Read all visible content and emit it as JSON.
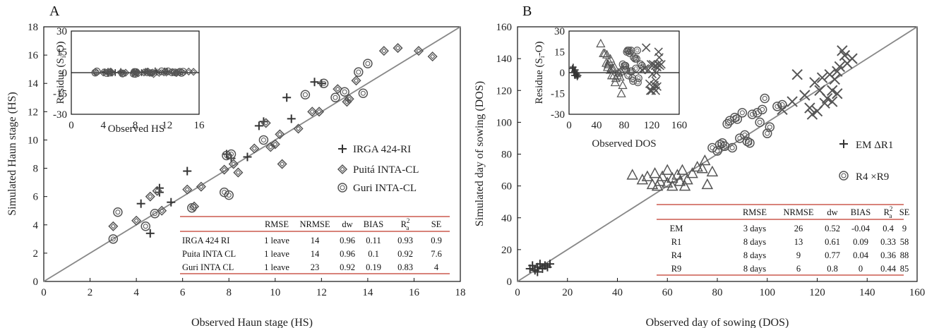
{
  "chart_data": [
    {
      "panel": "A",
      "type": "scatter",
      "xlabel": "Observed Haun stage (HS)",
      "ylabel": "Simulated Haun stage (HS)",
      "xlim": [
        0,
        18
      ],
      "ylim": [
        0,
        18
      ],
      "xticks": [
        "0",
        "2",
        "4",
        "6",
        "8",
        "10",
        "12",
        "14",
        "16",
        "18"
      ],
      "yticks": [
        "0",
        "2",
        "4",
        "6",
        "8",
        "10",
        "12",
        "14",
        "16",
        "18"
      ],
      "one_to_one_line": true,
      "legend_position": "right",
      "series": [
        {
          "name": "IRGA 424-RI",
          "marker": "plus",
          "points": [
            [
              4.2,
              5.5
            ],
            [
              4.6,
              3.4
            ],
            [
              5.0,
              6.6
            ],
            [
              5.0,
              6.3
            ],
            [
              5.5,
              5.6
            ],
            [
              6.2,
              7.8
            ],
            [
              7.9,
              9.0
            ],
            [
              8.8,
              8.8
            ],
            [
              9.3,
              11.0
            ],
            [
              10.5,
              13.0
            ],
            [
              10.7,
              11.5
            ],
            [
              12.0,
              14.0
            ],
            [
              11.7,
              14.1
            ],
            [
              9.5,
              11.3
            ],
            [
              8.1,
              8.7
            ]
          ]
        },
        {
          "name": "Puitá INTA-CL",
          "marker": "diamond",
          "points": [
            [
              3.0,
              3.9
            ],
            [
              4.0,
              4.3
            ],
            [
              4.6,
              6.0
            ],
            [
              4.9,
              6.4
            ],
            [
              5.1,
              5.0
            ],
            [
              6.2,
              6.5
            ],
            [
              6.5,
              5.3
            ],
            [
              6.8,
              6.7
            ],
            [
              7.8,
              7.9
            ],
            [
              8.2,
              8.3
            ],
            [
              8.4,
              7.7
            ],
            [
              9.1,
              9.4
            ],
            [
              9.6,
              11.2
            ],
            [
              9.8,
              9.5
            ],
            [
              10.0,
              9.7
            ],
            [
              10.2,
              10.4
            ],
            [
              10.3,
              8.3
            ],
            [
              11.0,
              10.8
            ],
            [
              11.6,
              12.0
            ],
            [
              11.9,
              12.0
            ],
            [
              12.7,
              13.6
            ],
            [
              13.2,
              12.9
            ],
            [
              13.5,
              14.2
            ],
            [
              14.7,
              16.3
            ],
            [
              15.3,
              16.5
            ],
            [
              16.2,
              16.3
            ],
            [
              16.8,
              15.9
            ],
            [
              13.1,
              12.7
            ]
          ]
        },
        {
          "name": "Guri INTA-CL",
          "marker": "circle",
          "points": [
            [
              3.0,
              3.0
            ],
            [
              3.2,
              4.9
            ],
            [
              4.4,
              3.9
            ],
            [
              4.8,
              4.8
            ],
            [
              6.4,
              5.2
            ],
            [
              7.8,
              6.3
            ],
            [
              8.0,
              6.1
            ],
            [
              7.9,
              8.9
            ],
            [
              8.1,
              9.0
            ],
            [
              9.5,
              10.0
            ],
            [
              11.3,
              13.2
            ],
            [
              12.1,
              14.0
            ],
            [
              12.6,
              13.0
            ],
            [
              13.0,
              13.4
            ],
            [
              13.6,
              14.8
            ],
            [
              14.0,
              15.4
            ],
            [
              13.8,
              13.3
            ]
          ]
        }
      ],
      "inset": {
        "xlabel": "Observed HS",
        "ylabel": "Residue (Si-O)",
        "ylabel_main": "Residue (S",
        "ylabel_sub": "i",
        "ylabel_tail": "-O)",
        "xlim": [
          0,
          16
        ],
        "ylim": [
          -30,
          30
        ],
        "xticks": [
          "0",
          "4",
          "8",
          "12",
          "16"
        ],
        "yticks": [
          "-30",
          "-15",
          "0",
          "15",
          "30"
        ]
      },
      "table": {
        "headers": [
          "",
          "RMSE",
          "NRMSE",
          "dw",
          "BIAS",
          "R",
          "SE"
        ],
        "r2_sup": "2",
        "r2_sub": "a",
        "rows": [
          [
            "IRGA 424 RI",
            "1 leave",
            "14",
            "0.96",
            "0.11",
            "0.93",
            "0.9"
          ],
          [
            "Puita INTA CL",
            "1 leave",
            "14",
            "0.96",
            "0.1",
            "0.92",
            "7.6"
          ],
          [
            "Guri INTA CL",
            "1 leave",
            "23",
            "0.92",
            "0.19",
            "0.83",
            "4"
          ]
        ]
      }
    },
    {
      "panel": "B",
      "type": "scatter",
      "xlabel": "Observed day of sowing (DOS)",
      "ylabel": "Simulated day of sowing (DOS)",
      "xlim": [
        0,
        160
      ],
      "ylim": [
        0,
        160
      ],
      "xticks": [
        "0",
        "20",
        "40",
        "60",
        "80",
        "100",
        "120",
        "140",
        "160"
      ],
      "yticks": [
        "0",
        "20",
        "40",
        "60",
        "80",
        "100",
        "120",
        "140",
        "160"
      ],
      "one_to_one_line": true,
      "legend_position": "right",
      "legend_text": [
        "EM  ΔR1",
        "R4  ×R9"
      ],
      "series": [
        {
          "name": "EM",
          "marker": "plus",
          "points": [
            [
              5,
              8
            ],
            [
              6,
              10
            ],
            [
              7,
              7
            ],
            [
              8,
              9
            ],
            [
              9,
              11
            ],
            [
              10,
              8
            ],
            [
              11,
              10
            ],
            [
              12,
              9
            ],
            [
              13,
              11
            ],
            [
              8,
              6
            ]
          ]
        },
        {
          "name": "R1",
          "marker": "triangle",
          "points": [
            [
              46,
              67
            ],
            [
              50,
              64
            ],
            [
              52,
              66
            ],
            [
              54,
              61
            ],
            [
              55,
              68
            ],
            [
              57,
              63
            ],
            [
              58,
              66
            ],
            [
              60,
              62
            ],
            [
              60,
              70
            ],
            [
              62,
              65
            ],
            [
              64,
              67
            ],
            [
              65,
              63
            ],
            [
              66,
              70
            ],
            [
              68,
              64
            ],
            [
              70,
              68
            ],
            [
              72,
              72
            ],
            [
              74,
              71
            ],
            [
              75,
              76
            ],
            [
              76,
              61
            ],
            [
              78,
              69
            ],
            [
              56,
              60
            ],
            [
              62,
              60
            ],
            [
              67,
              60
            ]
          ]
        },
        {
          "name": "R4",
          "marker": "circle",
          "points": [
            [
              78,
              84
            ],
            [
              80,
              82
            ],
            [
              81,
              86
            ],
            [
              82,
              87
            ],
            [
              83,
              85
            ],
            [
              84,
              99
            ],
            [
              85,
              101
            ],
            [
              86,
              84
            ],
            [
              87,
              103
            ],
            [
              88,
              102
            ],
            [
              89,
              90
            ],
            [
              90,
              106
            ],
            [
              91,
              92
            ],
            [
              92,
              88
            ],
            [
              93,
              87
            ],
            [
              94,
              105
            ],
            [
              96,
              106
            ],
            [
              97,
              100
            ],
            [
              98,
              108
            ],
            [
              99,
              115
            ],
            [
              100,
              93
            ],
            [
              101,
              97
            ],
            [
              104,
              110
            ],
            [
              106,
              111
            ]
          ]
        },
        {
          "name": "R9",
          "marker": "x",
          "points": [
            [
              106,
              108
            ],
            [
              110,
              113
            ],
            [
              112,
              130
            ],
            [
              115,
              117
            ],
            [
              117,
              109
            ],
            [
              118,
              105
            ],
            [
              119,
              125
            ],
            [
              120,
              107
            ],
            [
              121,
              120
            ],
            [
              122,
              128
            ],
            [
              123,
              112
            ],
            [
              124,
              115
            ],
            [
              125,
              130
            ],
            [
              126,
              120
            ],
            [
              127,
              127
            ],
            [
              128,
              132
            ],
            [
              129,
              135
            ],
            [
              130,
              145
            ],
            [
              131,
              142
            ],
            [
              132,
              137
            ],
            [
              134,
              140
            ],
            [
              128,
              118
            ],
            [
              126,
              113
            ]
          ]
        }
      ],
      "inset": {
        "xlabel": "Observed DOS",
        "ylabel": "Residue (Si-O)",
        "ylabel_main": "Residue (S",
        "ylabel_sub": "i",
        "ylabel_tail": "-O)",
        "xlim": [
          0,
          160
        ],
        "ylim": [
          -30,
          30
        ],
        "xticks": [
          "0",
          "40",
          "80",
          "120",
          "160"
        ],
        "yticks": [
          "-30",
          "-15",
          "0",
          "15",
          "30"
        ]
      },
      "table": {
        "headers": [
          "",
          "RMSE",
          "NRMSE",
          "dw",
          "BIAS",
          "R",
          "SE"
        ],
        "r2_sup": "2",
        "r2_sub": "a",
        "rows": [
          [
            "EM",
            "3 days",
            "26",
            "0.52",
            "-0.04",
            "0.4",
            "9"
          ],
          [
            "R1",
            "8 days",
            "13",
            "0.61",
            "0.09",
            "0.33",
            "58"
          ],
          [
            "R4",
            "8 days",
            "9",
            "0.77",
            "0.04",
            "0.36",
            "88"
          ],
          [
            "R9",
            "8 days",
            "6",
            "0.8",
            "0",
            "0.44",
            "85"
          ]
        ]
      }
    }
  ],
  "colors": {
    "axis": "#111111",
    "line": "#888888",
    "marker": "#555555",
    "table_rule": "#c0392b"
  }
}
